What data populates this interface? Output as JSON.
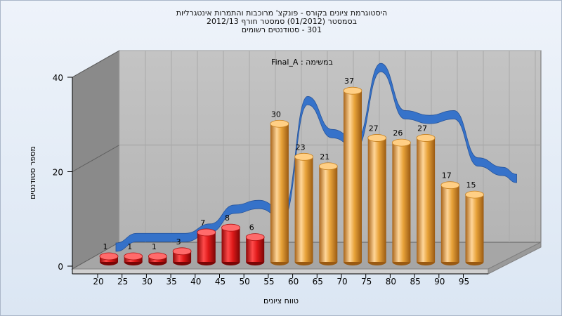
{
  "chart_data": {
    "type": "bar",
    "title_lines": [
      "היסטוגרמת ציונים בקורס - פונקצ' מרוכבות והתמרות אינטגרליות",
      "בסמסטר  (01/2012)  סמסטר חורף  2012/13",
      "301 - סטודנטים רשומים"
    ],
    "annotation": "Final_A : במשימה",
    "xlabel": "טווח ציונים",
    "ylabel": "מספר סטודנטים",
    "categories": [
      "20",
      "25",
      "30",
      "35",
      "40",
      "45",
      "50",
      "55",
      "60",
      "65",
      "70",
      "75",
      "80",
      "85",
      "90",
      "95"
    ],
    "values": [
      1,
      1,
      1,
      3,
      7,
      8,
      6,
      30,
      23,
      21,
      37,
      27,
      26,
      27,
      17,
      15
    ],
    "failing_categories": [
      "20",
      "25",
      "30",
      "35",
      "40",
      "45",
      "50"
    ],
    "y_ticks": [
      "0",
      "20",
      "40"
    ],
    "ylim": [
      0,
      40
    ],
    "colors": {
      "fail": "#e01a1a",
      "pass": "#e8a33a",
      "curve": "#2f6fcb"
    }
  }
}
